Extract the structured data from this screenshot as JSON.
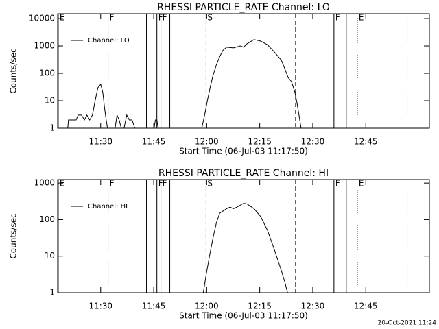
{
  "chart_data": [
    {
      "type": "line",
      "title": "RHESSI PARTICLE_RATE Channel: LO",
      "x_label": "Start Time (06-Jul-03 11:17:50)",
      "y_label": "Counts/sec",
      "log_y": true,
      "legend": "upper left",
      "xlim": [
        11.297,
        13.05
      ],
      "xticks": [
        {
          "value": 11.5,
          "label": "11:30"
        },
        {
          "value": 11.75,
          "label": "11:45"
        },
        {
          "value": 12,
          "label": "12:00"
        },
        {
          "value": 12.25,
          "label": "12:15"
        },
        {
          "value": 12.5,
          "label": "12:30"
        },
        {
          "value": 12.75,
          "label": "12:45"
        }
      ],
      "ylim": [
        1,
        15000
      ],
      "yticks": [
        1,
        10,
        100,
        1000,
        10000
      ],
      "x": [
        11.345,
        11.348,
        11.384,
        11.394,
        11.41,
        11.423,
        11.435,
        11.448,
        11.461,
        11.474,
        11.487,
        11.5,
        11.51,
        11.519,
        11.526,
        11.532,
        null,
        11.568,
        11.577,
        11.587,
        11.597,
        null,
        11.61,
        11.623,
        11.635,
        11.648,
        11.661,
        null,
        11.752,
        11.758,
        11.765,
        11.771,
        null,
        11.977,
        11.99,
        12.003,
        12.016,
        12.029,
        12.045,
        12.061,
        12.077,
        12.094,
        12.126,
        12.158,
        12.174,
        12.19,
        12.223,
        12.255,
        12.287,
        12.319,
        12.352,
        12.368,
        12.384,
        12.4,
        12.416,
        12.426,
        12.435,
        12.445
      ],
      "series": [
        {
          "name": "Channel: LO",
          "color": "#000000",
          "values": [
            1,
            2,
            2,
            3,
            3,
            2,
            3,
            2,
            3,
            10,
            30,
            40,
            20,
            5,
            2,
            1,
            null,
            1,
            3,
            2,
            1,
            null,
            1,
            3,
            2,
            2,
            1,
            null,
            1,
            2,
            2,
            1,
            null,
            1,
            3,
            10,
            30,
            80,
            200,
            400,
            700,
            900,
            850,
            1000,
            900,
            1200,
            1700,
            1500,
            1100,
            600,
            300,
            150,
            70,
            50,
            20,
            8,
            3,
            1
          ]
        }
      ],
      "annotations": [
        {
          "x": 11.3,
          "label": "E",
          "style": "solid"
        },
        {
          "x": 11.535,
          "label": "F",
          "style": "dotted"
        },
        {
          "x": 11.716,
          "style": "solid"
        },
        {
          "x": 11.765,
          "label": "F",
          "style": "solid"
        },
        {
          "x": 11.784,
          "label": "F",
          "style": "solid"
        },
        {
          "x": 11.826,
          "style": "solid"
        },
        {
          "x": 11.997,
          "label": "S",
          "style": "dashed"
        },
        {
          "x": 12.419,
          "style": "dashed"
        },
        {
          "x": 12.6,
          "label": "F",
          "style": "solid"
        },
        {
          "x": 12.658,
          "style": "solid"
        },
        {
          "x": 12.71,
          "label": "E",
          "style": "dotted"
        },
        {
          "x": 12.945,
          "style": "dotted"
        }
      ]
    },
    {
      "type": "line",
      "title": "RHESSI PARTICLE_RATE Channel: HI",
      "x_label": "Start Time (06-Jul-03 11:17:50)",
      "y_label": "Counts/sec",
      "log_y": true,
      "legend": "upper left",
      "xlim": [
        11.297,
        13.05
      ],
      "xticks": [
        {
          "value": 11.5,
          "label": "11:30"
        },
        {
          "value": 11.75,
          "label": "11:45"
        },
        {
          "value": 12,
          "label": "12:00"
        },
        {
          "value": 12.25,
          "label": "12:15"
        },
        {
          "value": 12.5,
          "label": "12:30"
        },
        {
          "value": 12.75,
          "label": "12:45"
        }
      ],
      "ylim": [
        1,
        1250
      ],
      "yticks": [
        1,
        10,
        100,
        1000
      ],
      "x": [
        11.984,
        11.997,
        12.013,
        12.029,
        12.045,
        12.061,
        12.094,
        12.11,
        12.126,
        12.142,
        12.174,
        12.19,
        12.223,
        12.255,
        12.287,
        12.319,
        12.352,
        12.368,
        12.381
      ],
      "series": [
        {
          "name": "Channel: HI",
          "color": "#000000",
          "values": [
            1,
            3,
            10,
            30,
            80,
            150,
            200,
            220,
            200,
            220,
            280,
            270,
            200,
            120,
            50,
            15,
            4,
            2,
            1
          ]
        }
      ],
      "annotations": [
        {
          "x": 11.3,
          "label": "E",
          "style": "solid"
        },
        {
          "x": 11.535,
          "label": "F",
          "style": "dotted"
        },
        {
          "x": 11.716,
          "style": "solid"
        },
        {
          "x": 11.765,
          "label": "F",
          "style": "solid"
        },
        {
          "x": 11.784,
          "label": "F",
          "style": "solid"
        },
        {
          "x": 11.826,
          "style": "solid"
        },
        {
          "x": 11.997,
          "label": "S",
          "style": "dashed"
        },
        {
          "x": 12.419,
          "style": "dashed"
        },
        {
          "x": 12.6,
          "label": "F",
          "style": "solid"
        },
        {
          "x": 12.658,
          "style": "solid"
        },
        {
          "x": 12.71,
          "label": "E",
          "style": "dotted"
        },
        {
          "x": 12.945,
          "style": "dotted"
        }
      ]
    }
  ],
  "timestamp": "20-Oct-2021 11:24"
}
